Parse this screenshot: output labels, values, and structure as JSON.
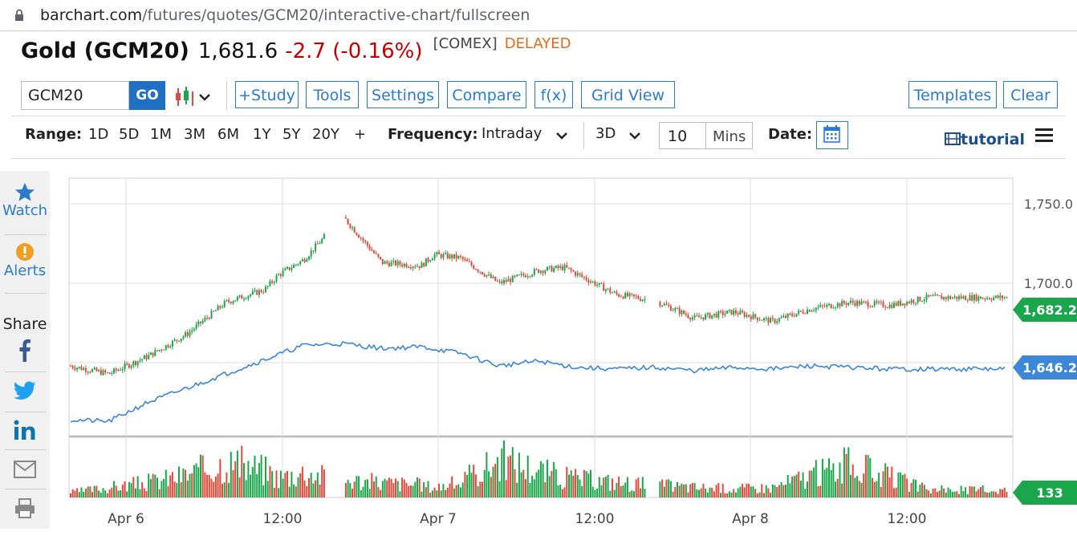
{
  "browser": {
    "url_host": "barchart.com",
    "url_path": "/futures/quotes/GCM20/interactive-chart/fullscreen"
  },
  "quote": {
    "symbol_title": "Gold (GCM20)",
    "last": "1,681.6",
    "change": "-2.7 (-0.16%)",
    "exchange": "[COMEX]",
    "status": "DELAYED"
  },
  "toolbar": {
    "symbol_value": "GCM20",
    "go_label": "GO",
    "chart_type_icon": "candlestick-icon",
    "study_label": "+Study",
    "tools_label": "Tools",
    "settings_label": "Settings",
    "compare_label": "Compare",
    "fx_label": "f(x)",
    "grid_view_label": "Grid View",
    "templates_label": "Templates",
    "clear_label": "Clear"
  },
  "range_bar": {
    "range_label": "Range:",
    "ranges": [
      "1D",
      "5D",
      "1M",
      "3M",
      "6M",
      "1Y",
      "5Y",
      "20Y",
      "+"
    ],
    "frequency_label": "Frequency:",
    "frequency_value": "Intraday",
    "period_value": "3D",
    "interval_value": "10",
    "interval_unit": "Mins",
    "date_label": "Date:",
    "tutorial_label": "tutorial"
  },
  "sidebar": {
    "watch_label": "Watch",
    "alerts_label": "Alerts",
    "share_label": "Share"
  },
  "colors": {
    "accent": "#2b7bcc",
    "up": "#1aa64a",
    "down": "#e04a3a",
    "compare_line": "#3d86d8",
    "negative_text": "#c00000",
    "delayed": "#e06b1a"
  },
  "chart_data": {
    "type": "line",
    "series": [
      {
        "name": "GCM20",
        "kind": "candlestick",
        "x": [
          "Apr 6 00:00",
          "Apr 6 03:00",
          "Apr 6 06:00",
          "Apr 6 09:00",
          "Apr 6 12:00",
          "Apr 6 15:00",
          "Apr 6 16:00",
          "Apr 6 18:00",
          "Apr 6 21:00",
          "Apr 7 00:00",
          "Apr 7 03:00",
          "Apr 7 04:00",
          "Apr 7 06:00",
          "Apr 7 09:00",
          "Apr 7 12:00",
          "Apr 7 14:00",
          "Apr 7 18:00",
          "Apr 7 21:00",
          "Apr 8 00:00",
          "Apr 8 03:00",
          "Apr 8 06:00",
          "Apr 8 09:00",
          "Apr 8 12:00",
          "Apr 8 15:00",
          "Apr 8 18:00"
        ],
        "values": [
          1648,
          1643,
          1654,
          1668,
          1688,
          1696,
          1705,
          1715,
          1742,
          1713,
          1711,
          1718,
          1716,
          1700,
          1708,
          1710,
          1693,
          1689,
          1678,
          1682,
          1676,
          1684,
          1688,
          1686,
          1691
        ]
      },
      {
        "name": "compare",
        "kind": "line",
        "x": [
          "Apr 6 00:00",
          "Apr 6 03:00",
          "Apr 6 06:00",
          "Apr 6 09:00",
          "Apr 6 12:00",
          "Apr 6 15:00",
          "Apr 6 18:00",
          "Apr 6 21:00",
          "Apr 7 00:00",
          "Apr 7 03:00",
          "Apr 7 06:00",
          "Apr 7 09:00",
          "Apr 7 12:00",
          "Apr 7 15:00",
          "Apr 7 18:00",
          "Apr 7 21:00",
          "Apr 8 00:00",
          "Apr 8 03:00",
          "Apr 8 06:00",
          "Apr 8 09:00",
          "Apr 8 12:00",
          "Apr 8 15:00",
          "Apr 8 18:00"
        ],
        "values": [
          1614,
          1613,
          1625,
          1634,
          1643,
          1652,
          1661,
          1662,
          1659,
          1660,
          1656,
          1648,
          1651,
          1647,
          1646,
          1647,
          1645,
          1647,
          1646,
          1648,
          1647,
          1646,
          1646
        ]
      }
    ],
    "volume": [
      20,
      40,
      60,
      90,
      140,
      110,
      80,
      100,
      70,
      60,
      50,
      40,
      60,
      150,
      110,
      80,
      60,
      50,
      40,
      35,
      40,
      90,
      130,
      80,
      30
    ],
    "x_ticks": [
      "Apr 6",
      "12:00",
      "Apr 7",
      "12:00",
      "Apr 8",
      "12:00"
    ],
    "y_ticks": [
      "1,750.0",
      "1,700.0"
    ],
    "ylim": [
      1600,
      1765
    ],
    "last_price_label": "1,682.2",
    "compare_price_label": "1,646.2",
    "volume_label": "133",
    "grid": true
  }
}
